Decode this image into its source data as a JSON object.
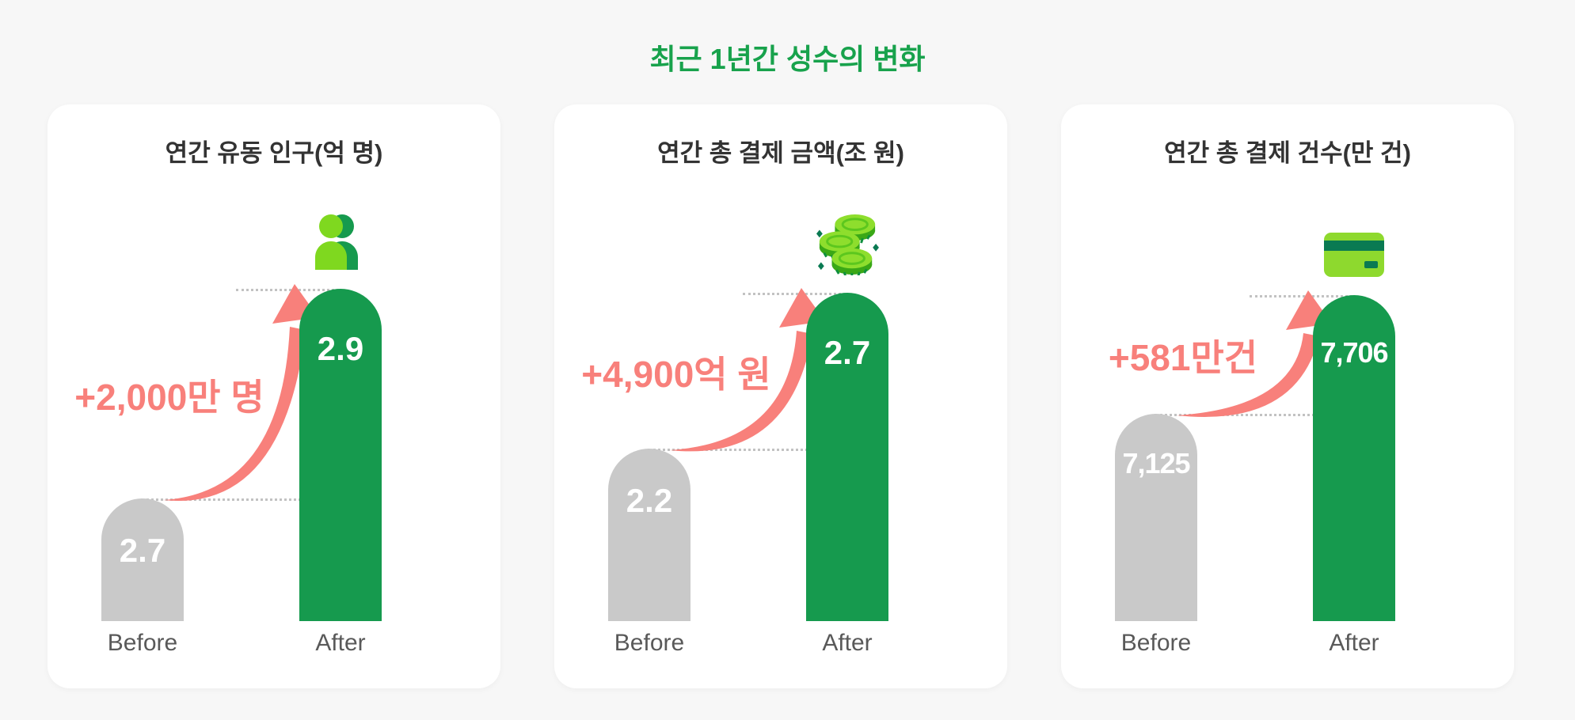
{
  "page": {
    "title": "최근 1년간 성수의 변화",
    "background": "#f7f7f7"
  },
  "colors": {
    "title_green": "#18a24c",
    "bar_green": "#169a4e",
    "bar_gray": "#c9c9c9",
    "annotation_coral": "#f8807b",
    "icon_bright_green": "#7fd81f",
    "icon_dark_teal": "#0a7a52",
    "card_background": "#ffffff",
    "label_gray": "#595959"
  },
  "cards": [
    {
      "title": "연간 유동 인구(억 명)",
      "icon": "person-icon",
      "annotation": "+2,000만 명",
      "before": {
        "label": "Before",
        "value": "2.7"
      },
      "after": {
        "label": "After",
        "value": "2.9"
      },
      "layout": {
        "before_bar_h": 155,
        "after_bar_h": 420
      }
    },
    {
      "title": "연간 총 결제 금액(조 원)",
      "icon": "coins-icon",
      "annotation": "+4,900억 원",
      "before": {
        "label": "Before",
        "value": "2.2"
      },
      "after": {
        "label": "After",
        "value": "2.7"
      },
      "layout": {
        "before_bar_h": 218,
        "after_bar_h": 415
      }
    },
    {
      "title": "연간 총 결제 건수(만 건)",
      "icon": "credit-card-icon",
      "annotation": "+581만건",
      "before": {
        "label": "Before",
        "value": "7,125"
      },
      "after": {
        "label": "After",
        "value": "7,706"
      },
      "layout": {
        "before_bar_h": 262,
        "after_bar_h": 412
      }
    }
  ],
  "chart_data": [
    {
      "type": "bar",
      "title": "연간 유동 인구(억 명)",
      "categories": [
        "Before",
        "After"
      ],
      "values": [
        2.7,
        2.9
      ],
      "unit": "억 명",
      "annotation": "+2,000만 명",
      "bar_colors": [
        "#c9c9c9",
        "#169a4e"
      ],
      "value_labels_inside_bars": true,
      "grid": false,
      "legend": "none"
    },
    {
      "type": "bar",
      "title": "연간 총 결제 금액(조 원)",
      "categories": [
        "Before",
        "After"
      ],
      "values": [
        2.2,
        2.7
      ],
      "unit": "조 원",
      "annotation": "+4,900억 원",
      "bar_colors": [
        "#c9c9c9",
        "#169a4e"
      ],
      "value_labels_inside_bars": true,
      "grid": false,
      "legend": "none"
    },
    {
      "type": "bar",
      "title": "연간 총 결제 건수(만 건)",
      "categories": [
        "Before",
        "After"
      ],
      "values": [
        7125,
        7706
      ],
      "unit": "만 건",
      "annotation": "+581만건",
      "bar_colors": [
        "#c9c9c9",
        "#169a4e"
      ],
      "value_labels_inside_bars": true,
      "grid": false,
      "legend": "none"
    }
  ]
}
